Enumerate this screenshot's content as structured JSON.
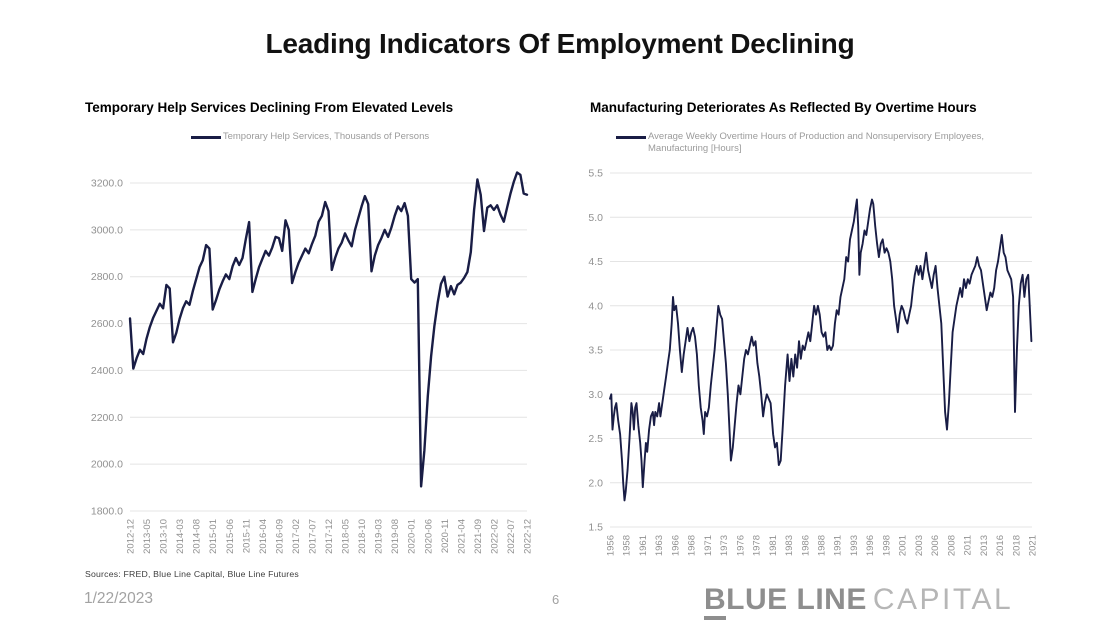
{
  "title": "Leading Indicators Of Employment Declining",
  "footer": {
    "sources": "Sources: FRED, Blue Line Capital, Blue Line Futures",
    "date": "1/22/2023",
    "page": "6",
    "logo_b": "B",
    "logo_rest": "LUE LINE",
    "logo_light": "CAPITAL"
  },
  "colors": {
    "line": "#191d45",
    "grid": "#e4e4e4",
    "tick_label": "#919191"
  },
  "chart_data": [
    {
      "type": "line",
      "title": "Temporary Help Services Declining From Elevated Levels",
      "legend": "Temporary Help Services, Thousands of Persons",
      "line_color": "#191d45",
      "grid": true,
      "legend_position": "top-center",
      "ylim": [
        1800,
        3200
      ],
      "y_tick_values": [
        1800,
        2000,
        2200,
        2400,
        2600,
        2800,
        3000,
        3200
      ],
      "y_tick_labels": [
        "1800.0",
        "2000.0",
        "2200.0",
        "2400.0",
        "2600.0",
        "2800.0",
        "3000.0",
        "3200.0"
      ],
      "x_tick_labels": [
        "2012-12",
        "2013-05",
        "2013-10",
        "2014-03",
        "2014-08",
        "2015-01",
        "2015-06",
        "2015-11",
        "2016-04",
        "2016-09",
        "2017-02",
        "2017-07",
        "2017-12",
        "2018-05",
        "2018-10",
        "2019-03",
        "2019-08",
        "2020-01",
        "2020-06",
        "2020-11",
        "2021-04",
        "2021-09",
        "2022-02",
        "2022-07",
        "2022-12"
      ],
      "x_start": "2012-12",
      "x_interval": "monthly",
      "values": [
        2622,
        2408,
        2452,
        2488,
        2470,
        2535,
        2585,
        2625,
        2655,
        2685,
        2665,
        2765,
        2750,
        2520,
        2560,
        2620,
        2665,
        2695,
        2680,
        2740,
        2790,
        2840,
        2870,
        2935,
        2920,
        2660,
        2700,
        2745,
        2780,
        2810,
        2790,
        2845,
        2880,
        2850,
        2880,
        2960,
        3033,
        2735,
        2790,
        2840,
        2875,
        2910,
        2890,
        2925,
        2970,
        2965,
        2910,
        3041,
        3000,
        2773,
        2820,
        2860,
        2890,
        2920,
        2900,
        2940,
        2975,
        3035,
        3060,
        3119,
        3080,
        2829,
        2880,
        2920,
        2945,
        2985,
        2955,
        2930,
        3000,
        3050,
        3100,
        3144,
        3110,
        2823,
        2890,
        2935,
        2965,
        3000,
        2970,
        3010,
        3060,
        3100,
        3080,
        3114,
        3060,
        2790,
        2775,
        2790,
        1905,
        2060,
        2290,
        2460,
        2590,
        2690,
        2770,
        2800,
        2715,
        2760,
        2725,
        2765,
        2775,
        2795,
        2820,
        2905,
        3085,
        3215,
        3150,
        2995,
        3095,
        3105,
        3085,
        3105,
        3065,
        3035,
        3095,
        3155,
        3205,
        3245,
        3235,
        3155,
        3150
      ]
    },
    {
      "type": "line",
      "title": "Manufacturing Deteriorates As Reflected By Overtime Hours",
      "legend": "Average Weekly Overtime Hours of Production and Nonsupervisory Employees, Manufacturing [Hours]",
      "line_color": "#191d45",
      "grid": true,
      "legend_position": "top-center",
      "ylim": [
        1.5,
        5.5
      ],
      "y_tick_values": [
        1.5,
        2.0,
        2.5,
        3.0,
        3.5,
        4.0,
        4.5,
        5.0,
        5.5
      ],
      "y_tick_labels": [
        "1.5",
        "2.0",
        "2.5",
        "3.0",
        "3.5",
        "4.0",
        "4.5",
        "5.0",
        "5.5"
      ],
      "x_tick_labels": [
        "1956",
        "1958",
        "1961",
        "1963",
        "1966",
        "1968",
        "1971",
        "1973",
        "1976",
        "1978",
        "1981",
        "1983",
        "1986",
        "1988",
        "1991",
        "1993",
        "1996",
        "1998",
        "2001",
        "2003",
        "2006",
        "2008",
        "2011",
        "2013",
        "2016",
        "2018",
        "2021"
      ],
      "x_tick_start_year": 1956,
      "x_tick_interval_years": 2.5,
      "points": [
        [
          1956.0,
          2.95
        ],
        [
          1956.2,
          3.0
        ],
        [
          1956.4,
          2.6
        ],
        [
          1956.6,
          2.75
        ],
        [
          1956.8,
          2.85
        ],
        [
          1957.0,
          2.9
        ],
        [
          1957.3,
          2.7
        ],
        [
          1957.6,
          2.55
        ],
        [
          1957.9,
          2.25
        ],
        [
          1958.1,
          2.0
        ],
        [
          1958.3,
          1.8
        ],
        [
          1958.5,
          1.9
        ],
        [
          1958.8,
          2.15
        ],
        [
          1959.1,
          2.5
        ],
        [
          1959.4,
          2.9
        ],
        [
          1959.6,
          2.8
        ],
        [
          1959.8,
          2.6
        ],
        [
          1960.0,
          2.85
        ],
        [
          1960.2,
          2.9
        ],
        [
          1960.5,
          2.65
        ],
        [
          1960.8,
          2.45
        ],
        [
          1961.0,
          2.25
        ],
        [
          1961.2,
          1.95
        ],
        [
          1961.5,
          2.25
        ],
        [
          1961.7,
          2.45
        ],
        [
          1961.9,
          2.35
        ],
        [
          1962.2,
          2.6
        ],
        [
          1962.5,
          2.75
        ],
        [
          1962.8,
          2.8
        ],
        [
          1963.0,
          2.65
        ],
        [
          1963.2,
          2.8
        ],
        [
          1963.5,
          2.75
        ],
        [
          1963.8,
          2.9
        ],
        [
          1964.0,
          2.75
        ],
        [
          1964.3,
          2.9
        ],
        [
          1964.6,
          3.05
        ],
        [
          1964.9,
          3.2
        ],
        [
          1965.2,
          3.35
        ],
        [
          1965.5,
          3.5
        ],
        [
          1965.8,
          3.8
        ],
        [
          1966.0,
          4.1
        ],
        [
          1966.2,
          3.95
        ],
        [
          1966.5,
          4.0
        ],
        [
          1966.8,
          3.8
        ],
        [
          1967.1,
          3.5
        ],
        [
          1967.4,
          3.25
        ],
        [
          1967.7,
          3.45
        ],
        [
          1968.0,
          3.6
        ],
        [
          1968.3,
          3.75
        ],
        [
          1968.6,
          3.6
        ],
        [
          1968.9,
          3.7
        ],
        [
          1969.2,
          3.75
        ],
        [
          1969.5,
          3.65
        ],
        [
          1969.8,
          3.45
        ],
        [
          1970.1,
          3.1
        ],
        [
          1970.4,
          2.85
        ],
        [
          1970.7,
          2.7
        ],
        [
          1970.9,
          2.55
        ],
        [
          1971.1,
          2.8
        ],
        [
          1971.4,
          2.75
        ],
        [
          1971.7,
          2.85
        ],
        [
          1972.0,
          3.1
        ],
        [
          1972.3,
          3.3
        ],
        [
          1972.6,
          3.5
        ],
        [
          1972.9,
          3.75
        ],
        [
          1973.2,
          4.0
        ],
        [
          1973.5,
          3.9
        ],
        [
          1973.8,
          3.85
        ],
        [
          1974.1,
          3.6
        ],
        [
          1974.4,
          3.35
        ],
        [
          1974.7,
          3.0
        ],
        [
          1975.0,
          2.55
        ],
        [
          1975.2,
          2.25
        ],
        [
          1975.5,
          2.4
        ],
        [
          1975.8,
          2.65
        ],
        [
          1976.1,
          2.9
        ],
        [
          1976.4,
          3.1
        ],
        [
          1976.7,
          3.0
        ],
        [
          1977.0,
          3.2
        ],
        [
          1977.3,
          3.4
        ],
        [
          1977.6,
          3.5
        ],
        [
          1977.9,
          3.45
        ],
        [
          1978.2,
          3.55
        ],
        [
          1978.5,
          3.65
        ],
        [
          1978.8,
          3.55
        ],
        [
          1979.1,
          3.6
        ],
        [
          1979.4,
          3.35
        ],
        [
          1979.7,
          3.2
        ],
        [
          1980.0,
          3.0
        ],
        [
          1980.3,
          2.75
        ],
        [
          1980.6,
          2.9
        ],
        [
          1980.9,
          3.0
        ],
        [
          1981.2,
          2.95
        ],
        [
          1981.5,
          2.9
        ],
        [
          1981.9,
          2.55
        ],
        [
          1982.2,
          2.4
        ],
        [
          1982.5,
          2.45
        ],
        [
          1982.8,
          2.2
        ],
        [
          1983.1,
          2.25
        ],
        [
          1983.4,
          2.6
        ],
        [
          1983.8,
          3.1
        ],
        [
          1984.2,
          3.45
        ],
        [
          1984.5,
          3.15
        ],
        [
          1984.8,
          3.4
        ],
        [
          1985.1,
          3.2
        ],
        [
          1985.4,
          3.45
        ],
        [
          1985.7,
          3.3
        ],
        [
          1986.0,
          3.6
        ],
        [
          1986.3,
          3.4
        ],
        [
          1986.6,
          3.55
        ],
        [
          1986.9,
          3.5
        ],
        [
          1987.2,
          3.6
        ],
        [
          1987.5,
          3.7
        ],
        [
          1987.8,
          3.6
        ],
        [
          1988.1,
          3.8
        ],
        [
          1988.4,
          4.0
        ],
        [
          1988.7,
          3.9
        ],
        [
          1989.0,
          4.0
        ],
        [
          1989.3,
          3.9
        ],
        [
          1989.6,
          3.7
        ],
        [
          1989.9,
          3.65
        ],
        [
          1990.2,
          3.7
        ],
        [
          1990.5,
          3.5
        ],
        [
          1990.8,
          3.55
        ],
        [
          1991.1,
          3.5
        ],
        [
          1991.4,
          3.55
        ],
        [
          1991.7,
          3.8
        ],
        [
          1992.0,
          3.95
        ],
        [
          1992.3,
          3.9
        ],
        [
          1992.6,
          4.1
        ],
        [
          1992.9,
          4.2
        ],
        [
          1993.2,
          4.3
        ],
        [
          1993.5,
          4.55
        ],
        [
          1993.8,
          4.5
        ],
        [
          1994.1,
          4.75
        ],
        [
          1994.4,
          4.85
        ],
        [
          1994.7,
          4.95
        ],
        [
          1995.0,
          5.1
        ],
        [
          1995.2,
          5.2
        ],
        [
          1995.4,
          4.9
        ],
        [
          1995.6,
          4.35
        ],
        [
          1995.8,
          4.6
        ],
        [
          1996.1,
          4.7
        ],
        [
          1996.4,
          4.85
        ],
        [
          1996.7,
          4.8
        ],
        [
          1997.0,
          4.95
        ],
        [
          1997.3,
          5.1
        ],
        [
          1997.6,
          5.2
        ],
        [
          1997.8,
          5.15
        ],
        [
          1998.1,
          4.9
        ],
        [
          1998.4,
          4.7
        ],
        [
          1998.7,
          4.55
        ],
        [
          1999.0,
          4.7
        ],
        [
          1999.3,
          4.75
        ],
        [
          1999.6,
          4.6
        ],
        [
          1999.9,
          4.65
        ],
        [
          2000.2,
          4.6
        ],
        [
          2000.5,
          4.5
        ],
        [
          2000.8,
          4.3
        ],
        [
          2001.1,
          4.0
        ],
        [
          2001.4,
          3.85
        ],
        [
          2001.7,
          3.7
        ],
        [
          2002.0,
          3.9
        ],
        [
          2002.3,
          4.0
        ],
        [
          2002.6,
          3.95
        ],
        [
          2002.9,
          3.85
        ],
        [
          2003.2,
          3.8
        ],
        [
          2003.5,
          3.9
        ],
        [
          2003.8,
          4.0
        ],
        [
          2004.1,
          4.2
        ],
        [
          2004.4,
          4.35
        ],
        [
          2004.7,
          4.45
        ],
        [
          2005.0,
          4.35
        ],
        [
          2005.3,
          4.45
        ],
        [
          2005.6,
          4.3
        ],
        [
          2005.9,
          4.45
        ],
        [
          2006.2,
          4.6
        ],
        [
          2006.5,
          4.4
        ],
        [
          2006.8,
          4.3
        ],
        [
          2007.1,
          4.2
        ],
        [
          2007.4,
          4.35
        ],
        [
          2007.7,
          4.45
        ],
        [
          2008.0,
          4.2
        ],
        [
          2008.3,
          4.0
        ],
        [
          2008.6,
          3.8
        ],
        [
          2008.9,
          3.3
        ],
        [
          2009.2,
          2.8
        ],
        [
          2009.5,
          2.6
        ],
        [
          2009.8,
          2.9
        ],
        [
          2010.1,
          3.3
        ],
        [
          2010.4,
          3.7
        ],
        [
          2010.7,
          3.85
        ],
        [
          2011.0,
          4.0
        ],
        [
          2011.3,
          4.1
        ],
        [
          2011.6,
          4.2
        ],
        [
          2011.9,
          4.1
        ],
        [
          2012.2,
          4.3
        ],
        [
          2012.5,
          4.2
        ],
        [
          2012.8,
          4.3
        ],
        [
          2013.1,
          4.25
        ],
        [
          2013.4,
          4.35
        ],
        [
          2013.7,
          4.4
        ],
        [
          2014.0,
          4.45
        ],
        [
          2014.3,
          4.55
        ],
        [
          2014.6,
          4.45
        ],
        [
          2014.9,
          4.4
        ],
        [
          2015.2,
          4.25
        ],
        [
          2015.5,
          4.1
        ],
        [
          2015.8,
          3.95
        ],
        [
          2016.1,
          4.05
        ],
        [
          2016.4,
          4.15
        ],
        [
          2016.7,
          4.1
        ],
        [
          2017.0,
          4.2
        ],
        [
          2017.3,
          4.4
        ],
        [
          2017.6,
          4.5
        ],
        [
          2017.9,
          4.65
        ],
        [
          2018.2,
          4.8
        ],
        [
          2018.5,
          4.6
        ],
        [
          2018.8,
          4.55
        ],
        [
          2019.1,
          4.4
        ],
        [
          2019.4,
          4.35
        ],
        [
          2019.7,
          4.3
        ],
        [
          2020.0,
          4.1
        ],
        [
          2020.3,
          2.8
        ],
        [
          2020.6,
          3.5
        ],
        [
          2020.9,
          4.0
        ],
        [
          2021.2,
          4.25
        ],
        [
          2021.5,
          4.35
        ],
        [
          2021.8,
          4.1
        ],
        [
          2022.1,
          4.3
        ],
        [
          2022.4,
          4.35
        ],
        [
          2022.6,
          4.05
        ],
        [
          2022.9,
          3.6
        ]
      ]
    }
  ]
}
